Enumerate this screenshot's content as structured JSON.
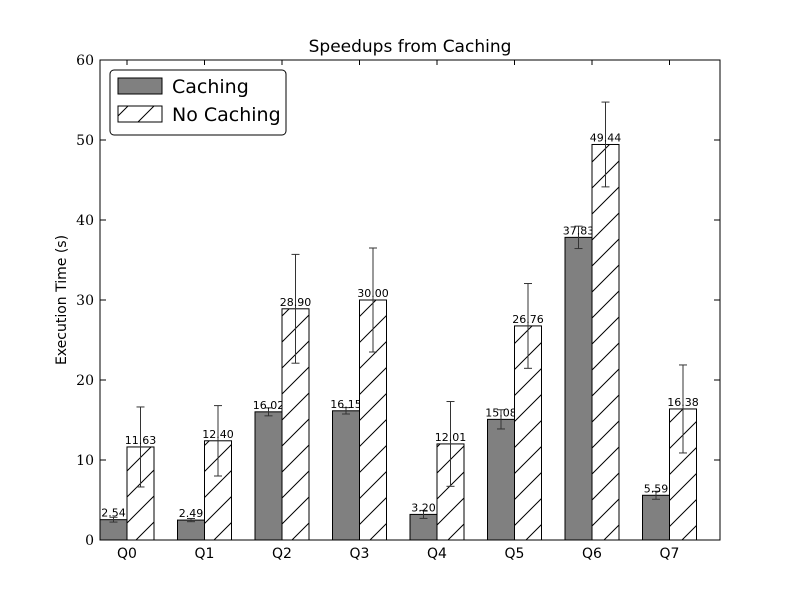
{
  "chart_data": {
    "type": "bar",
    "title": "Speedups from Caching",
    "xlabel": "",
    "ylabel": "Execution Time (s)",
    "ylim": [
      0,
      60
    ],
    "yticks": [
      0,
      10,
      20,
      30,
      40,
      50,
      60
    ],
    "categories": [
      "Q0",
      "Q1",
      "Q2",
      "Q3",
      "Q4",
      "Q5",
      "Q6",
      "Q7"
    ],
    "series": [
      {
        "name": "Caching",
        "values": [
          2.54,
          2.49,
          16.02,
          16.15,
          3.2,
          15.08,
          37.83,
          5.59
        ],
        "value_labels": [
          "2.54",
          "2.49",
          "16.02",
          "16.15",
          "3.20",
          "15.08",
          "37.83",
          "5.59"
        ],
        "errors": [
          0.3,
          0.2,
          0.5,
          0.4,
          0.5,
          1.2,
          1.4,
          0.5
        ],
        "color": "#808080",
        "hatch": "none"
      },
      {
        "name": "No Caching",
        "values": [
          11.63,
          12.4,
          28.9,
          30.0,
          12.01,
          26.76,
          49.44,
          16.38
        ],
        "value_labels": [
          "11.63",
          "12.40",
          "28.90",
          "30.00",
          "12.01",
          "26.76",
          "49.44",
          "16.38"
        ],
        "errors": [
          5.0,
          4.4,
          6.8,
          6.5,
          5.3,
          5.3,
          5.3,
          5.5
        ],
        "color": "#ffffff",
        "hatch": "diagonal"
      }
    ],
    "legend": "top-left",
    "grid": false
  }
}
